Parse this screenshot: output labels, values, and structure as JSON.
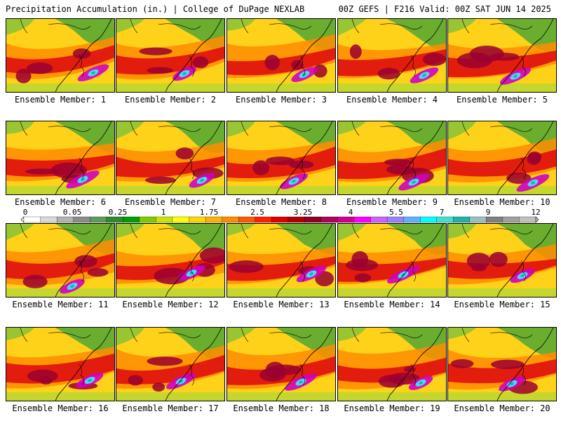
{
  "header": {
    "title": "Precipitation Accumulation (in.) | College of DuPage NEXLAB",
    "run_info": "00Z GEFS | F216 Valid: 00Z SAT JUN 14 2025"
  },
  "panels": [
    {
      "label": "Ensemble Member: 1"
    },
    {
      "label": "Ensemble Member: 2"
    },
    {
      "label": "Ensemble Member: 3"
    },
    {
      "label": "Ensemble Member: 4"
    },
    {
      "label": "Ensemble Member: 5"
    },
    {
      "label": "Ensemble Member: 6"
    },
    {
      "label": "Ensemble Member: 7"
    },
    {
      "label": "Ensemble Member: 8"
    },
    {
      "label": "Ensemble Member: 9"
    },
    {
      "label": "Ensemble Member: 10"
    },
    {
      "label": "Ensemble Member: 11"
    },
    {
      "label": "Ensemble Member: 12"
    },
    {
      "label": "Ensemble Member: 13"
    },
    {
      "label": "Ensemble Member: 14"
    },
    {
      "label": "Ensemble Member: 15"
    },
    {
      "label": "Ensemble Member: 16"
    },
    {
      "label": "Ensemble Member: 17"
    },
    {
      "label": "Ensemble Member: 18"
    },
    {
      "label": "Ensemble Member: 19"
    },
    {
      "label": "Ensemble Member: 20"
    }
  ],
  "legend": {
    "labels": [
      "0",
      "0.05",
      "0.25",
      "1",
      "1.75",
      "2.5",
      "3.25",
      "4",
      "5.5",
      "7",
      "9",
      "12"
    ],
    "colors": [
      "#ffffff",
      "#d9d9d9",
      "#b3b3b3",
      "#8c8c8c",
      "#5e9a5e",
      "#2e8b2e",
      "#00a000",
      "#7ccd00",
      "#c8e600",
      "#ffff00",
      "#ffd700",
      "#ffb000",
      "#ff8c00",
      "#ff5a00",
      "#ff2000",
      "#e00000",
      "#b00000",
      "#900020",
      "#b00060",
      "#d00090",
      "#ff00ff",
      "#d060ff",
      "#9a80ff",
      "#60b0ff",
      "#00ffff",
      "#40e0d0",
      "#20b2aa",
      "#9ac0c0",
      "#808080",
      "#a0a0a0",
      "#c0c0c0"
    ]
  }
}
